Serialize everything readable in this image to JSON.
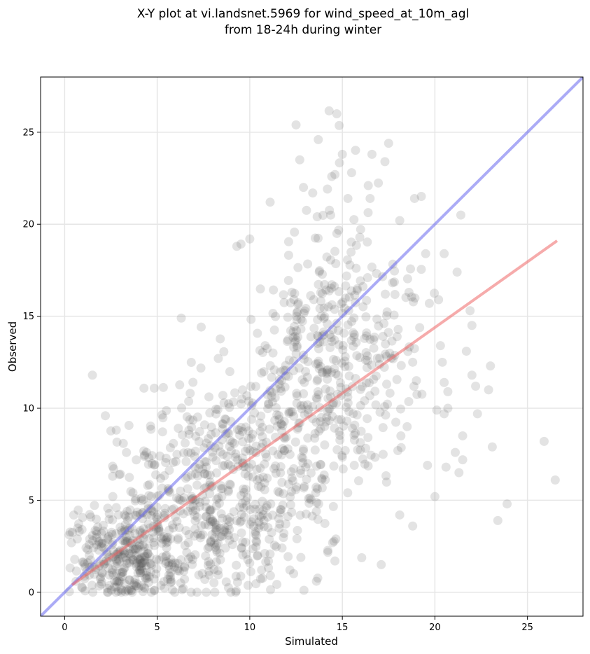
{
  "chart_data": {
    "type": "scatter",
    "title_line1": "X-Y plot at vi.landsnet.5969 for wind_speed_at_10m_agl",
    "title_line2": "from 18-24h during winter",
    "xlabel": "Simulated",
    "ylabel": "Observed",
    "xlim": [
      -1.3,
      28
    ],
    "ylim": [
      -1.3,
      28
    ],
    "xticks": [
      0,
      5,
      10,
      15,
      20,
      25
    ],
    "yticks": [
      0,
      5,
      10,
      15,
      20,
      25
    ],
    "grid": true,
    "colors": {
      "points": "#505050",
      "one_to_one": "#6666ee",
      "regression": "#ee6666"
    },
    "reference_line": {
      "from": [
        -1.3,
        -1.3
      ],
      "to": [
        28,
        28
      ]
    },
    "regression_line": {
      "from": [
        0.4,
        0.4
      ],
      "to": [
        26.6,
        19.1
      ]
    },
    "scatter_clusters": [
      {
        "cx": 2.5,
        "cy": 2.2,
        "sx": 1.3,
        "sy": 1.4,
        "n": 170
      },
      {
        "cx": 4.5,
        "cy": 1.5,
        "sx": 1.4,
        "sy": 1.2,
        "n": 150
      },
      {
        "cx": 5.5,
        "cy": 5.0,
        "sx": 1.8,
        "sy": 2.2,
        "n": 150
      },
      {
        "cx": 8.5,
        "cy": 3.0,
        "sx": 1.8,
        "sy": 2.0,
        "n": 150
      },
      {
        "cx": 8.5,
        "cy": 8.0,
        "sx": 2.0,
        "sy": 2.2,
        "n": 150
      },
      {
        "cx": 11.5,
        "cy": 5.5,
        "sx": 2.0,
        "sy": 2.3,
        "n": 130
      },
      {
        "cx": 12.5,
        "cy": 11.0,
        "sx": 2.0,
        "sy": 2.5,
        "n": 130
      },
      {
        "cx": 14.0,
        "cy": 15.0,
        "sx": 1.7,
        "sy": 1.8,
        "n": 110
      },
      {
        "cx": 15.5,
        "cy": 10.0,
        "sx": 1.8,
        "sy": 2.6,
        "n": 110
      },
      {
        "cx": 17.0,
        "cy": 14.5,
        "sx": 1.6,
        "sy": 2.2,
        "n": 60
      },
      {
        "cx": 14.5,
        "cy": 19.5,
        "sx": 2.0,
        "sy": 2.5,
        "n": 30
      }
    ],
    "scatter_points": [
      [
        1.5,
        11.8
      ],
      [
        12.5,
        25.4
      ],
      [
        14.7,
        26.0
      ],
      [
        13.7,
        24.6
      ],
      [
        15.0,
        23.8
      ],
      [
        16.6,
        23.8
      ],
      [
        17.3,
        23.4
      ],
      [
        17.5,
        24.4
      ],
      [
        12.7,
        23.5
      ],
      [
        14.6,
        22.7
      ],
      [
        15.5,
        22.8
      ],
      [
        16.4,
        22.1
      ],
      [
        12.9,
        22.0
      ],
      [
        13.4,
        21.7
      ],
      [
        11.1,
        21.2
      ],
      [
        15.3,
        21.4
      ],
      [
        16.5,
        21.4
      ],
      [
        18.9,
        21.4
      ],
      [
        21.4,
        20.5
      ],
      [
        18.1,
        20.2
      ],
      [
        10.0,
        19.2
      ],
      [
        9.3,
        18.8
      ],
      [
        19.5,
        18.4
      ],
      [
        20.5,
        18.4
      ],
      [
        21.2,
        17.4
      ],
      [
        19.7,
        15.7
      ],
      [
        20.2,
        15.9
      ],
      [
        21.9,
        15.3
      ],
      [
        22.0,
        14.5
      ],
      [
        21.7,
        13.1
      ],
      [
        20.3,
        13.4
      ],
      [
        20.4,
        12.5
      ],
      [
        22.0,
        11.8
      ],
      [
        22.2,
        11.2
      ],
      [
        23.0,
        12.3
      ],
      [
        22.9,
        11.0
      ],
      [
        20.5,
        11.4
      ],
      [
        20.7,
        10.9
      ],
      [
        20.1,
        9.9
      ],
      [
        20.5,
        9.7
      ],
      [
        20.7,
        10.0
      ],
      [
        22.3,
        9.7
      ],
      [
        21.5,
        8.5
      ],
      [
        23.1,
        7.9
      ],
      [
        21.1,
        7.6
      ],
      [
        21.5,
        7.2
      ],
      [
        21.3,
        6.5
      ],
      [
        20.6,
        6.8
      ],
      [
        19.6,
        6.9
      ],
      [
        20.0,
        5.2
      ],
      [
        25.9,
        8.2
      ],
      [
        26.5,
        6.1
      ],
      [
        23.9,
        4.8
      ],
      [
        23.4,
        3.9
      ],
      [
        18.8,
        3.6
      ],
      [
        18.1,
        4.2
      ],
      [
        17.1,
        1.5
      ],
      [
        14.6,
        1.7
      ],
      [
        13.6,
        0.6
      ],
      [
        6.3,
        14.9
      ],
      [
        18.5,
        9.0
      ],
      [
        18.0,
        7.7
      ],
      [
        19.0,
        11.5
      ],
      [
        18.8,
        12.5
      ],
      [
        18.6,
        16.3
      ]
    ]
  }
}
